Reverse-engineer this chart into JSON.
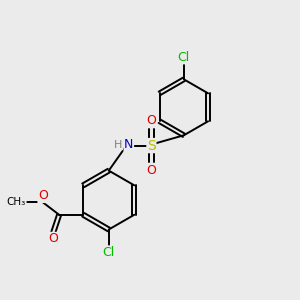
{
  "background_color": "#ebebeb",
  "atom_colors": {
    "C": "#000000",
    "H": "#808080",
    "N": "#0000cc",
    "O": "#dd0000",
    "S": "#bbbb00",
    "Cl": "#00bb00"
  },
  "bond_color": "#000000",
  "bond_width": 1.4,
  "figsize": [
    3.0,
    3.0
  ],
  "dpi": 100,
  "xlim": [
    0,
    10
  ],
  "ylim": [
    0,
    10
  ]
}
